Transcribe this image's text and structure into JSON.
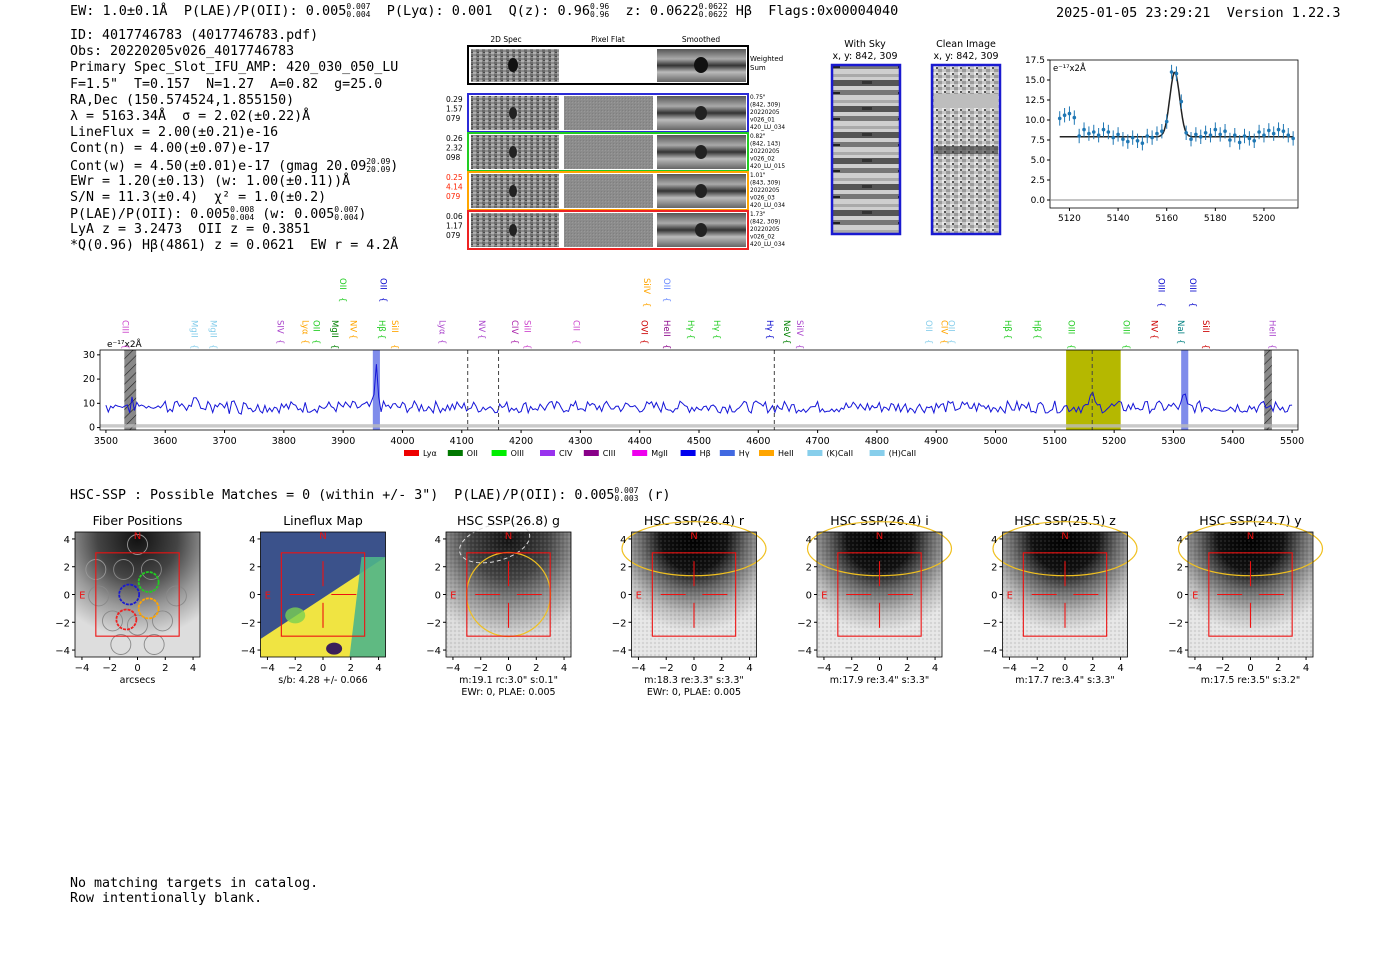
{
  "header": {
    "ew": "EW: 1.0±0.1Å",
    "plae": "P(LAE)/P(OII): 0.005",
    "plae_hi": "0.007",
    "plae_lo": "0.004",
    "plya": "P(Lyα): 0.001",
    "qz": "Q(z): 0.96",
    "qz_hi": "0.96",
    "qz_lo": "0.96",
    "z": "z: 0.0622",
    "z_hi": "0.0622",
    "z_lo": "0.0622",
    "line": "Hβ",
    "flags": "Flags:0x00004040",
    "timestamp": "2025-01-05 23:29:21",
    "version": "Version 1.22.3"
  },
  "info": {
    "id": "ID: 4017746783 (4017746783.pdf)",
    "obs": "Obs: 20220205v026_4017746783",
    "primary": "Primary Spec_Slot_IFU_AMP: 420_030_050_LU",
    "params": "F=1.5\"  T=0.157  N=1.27  A=0.82  g=25.0",
    "radec": "RA,Dec (150.574524,1.855150)",
    "lambda": "λ = 5163.34Å  σ = 2.02(±0.22)Å",
    "lineflux": "LineFlux = 2.00(±0.21)e-16",
    "contn": "Cont(n) = 4.00(±0.07)e-17",
    "contw": "Cont(w) = 4.50(±0.01)e-17 (gmag 20.09",
    "contw_hi": "20.09",
    "contw_lo": "20.09",
    "ewr": "EWr = 1.20(±0.13) (w: 1.00(±0.11))Å",
    "sn": "S/N = 11.3(±0.4)  χ² = 1.0(±0.2)",
    "plae": "P(LAE)/P(OII): 0.005",
    "plae_hi": "0.008",
    "plae_lo": "0.004",
    "plae_w": "(w: 0.005",
    "plae_w_hi": "0.007",
    "plae_w_lo": "0.004",
    "lya_z": "LyA z = 3.2473  OII z = 0.3851",
    "q_line": "*Q(0.96) Hβ(4861) z = 0.0621  EW r = 4.2Å"
  },
  "cutouts": {
    "col_headers": [
      "2D Spec",
      "Pixel Flat",
      "Smoothed"
    ],
    "weighted_label": [
      "Weighted",
      "Sum"
    ],
    "rows": [
      {
        "left": [
          "0.29",
          "1.57",
          "079"
        ],
        "left_color": "#000000",
        "border": "#2b2bd6",
        "right": [
          "0.75\"",
          "(842, 309)",
          "20220205",
          "v026_01",
          "420_LU_034"
        ]
      },
      {
        "left": [
          "0.26",
          "2.32",
          "098"
        ],
        "left_color": "#000000",
        "border": "#22cc22",
        "right": [
          "0.82\"",
          "(842, 143)",
          "20220205",
          "v026_02",
          "420_LU_015"
        ]
      },
      {
        "left": [
          "0.25",
          "4.14",
          "079"
        ],
        "left_color": "#ff2200",
        "border": "#ffa500",
        "right": [
          "1.01\"",
          "(843, 309)",
          "20220205",
          "v026_03",
          "420_LU_034"
        ]
      },
      {
        "left": [
          "0.06",
          "1.17",
          "079"
        ],
        "left_color": "#000000",
        "border": "#ee2222",
        "right": [
          "1.73\"",
          "(842, 309)",
          "20220205",
          "v026_02",
          "420_LU_034"
        ]
      }
    ]
  },
  "sky": {
    "with_sky_title": "With Sky",
    "with_sky_sub": "x, y: 842, 309",
    "clean_title": "Clean Image",
    "clean_sub": "x, y: 842, 309"
  },
  "zoom_label": "e⁻¹⁷x2Å",
  "spec_label": "e⁻¹⁷x2Å",
  "chart_data": [
    {
      "type": "line",
      "id": "zoom-spectrum",
      "xlim": [
        5112,
        5214
      ],
      "ylim": [
        -1,
        17.5
      ],
      "xticks": [
        5120,
        5140,
        5160,
        5180,
        5200
      ],
      "yticks": [
        0.0,
        2.5,
        5.0,
        7.5,
        10.0,
        12.5,
        15.0,
        17.5
      ],
      "x": [
        5116,
        5118,
        5120,
        5122,
        5124,
        5126,
        5128,
        5130,
        5132,
        5134,
        5136,
        5138,
        5140,
        5142,
        5144,
        5146,
        5148,
        5150,
        5152,
        5154,
        5156,
        5158,
        5160,
        5162,
        5164,
        5166,
        5168,
        5170,
        5172,
        5174,
        5176,
        5178,
        5180,
        5182,
        5184,
        5186,
        5188,
        5190,
        5192,
        5194,
        5196,
        5198,
        5200,
        5202,
        5204,
        5206,
        5208,
        5210,
        5212
      ],
      "y": [
        10.2,
        10.6,
        10.8,
        10.3,
        8.0,
        8.8,
        8.3,
        8.5,
        8.1,
        8.8,
        8.5,
        7.8,
        8.2,
        7.6,
        7.3,
        7.8,
        7.4,
        7.1,
        8.0,
        7.8,
        8.3,
        8.6,
        9.8,
        16.0,
        15.8,
        12.3,
        8.4,
        7.6,
        8.2,
        7.9,
        8.4,
        8.1,
        8.8,
        8.2,
        8.6,
        7.5,
        8.1,
        7.2,
        8.0,
        7.7,
        7.4,
        8.5,
        8.1,
        8.7,
        8.3,
        8.8,
        8.6,
        8.1,
        7.7
      ],
      "err": 0.9,
      "model": {
        "continuum": 7.9,
        "center": 5163.3,
        "sigma": 2.02,
        "amplitude": 8.1,
        "xrange": [
          5116,
          5212
        ]
      }
    },
    {
      "type": "line",
      "id": "full-spectrum",
      "xlim": [
        3490,
        5510
      ],
      "ylim": [
        -1,
        32
      ],
      "xticks": [
        3500,
        3600,
        3700,
        3800,
        3900,
        4000,
        4100,
        4200,
        4300,
        4400,
        4500,
        4600,
        4700,
        4800,
        4900,
        5000,
        5100,
        5200,
        5300,
        5400,
        5500
      ],
      "yticks": [
        0,
        10,
        20,
        30
      ],
      "series": [
        {
          "x_start": 3500,
          "x_end": 5500,
          "step": 4,
          "baseline": 8.5,
          "noise": 2.5
        }
      ],
      "emission": [
        {
          "x": 3956,
          "height": 16,
          "width": 2.5
        },
        {
          "x": 5163,
          "height": 8,
          "width": 2.0
        },
        {
          "x": 5318,
          "height": 6,
          "width": 2.0
        }
      ],
      "hatched": [
        [
          3531,
          3551
        ],
        [
          5453,
          5466
        ]
      ],
      "yellow_band": [
        5119,
        5211
      ],
      "blue_bands": [
        [
          3950,
          3962
        ],
        [
          5313,
          5325
        ]
      ],
      "dashed_lines": [
        4110,
        4162,
        4627,
        5163
      ],
      "lines": [
        {
          "label": "CIII",
          "x": 3523,
          "color": "#cc44cc",
          "row": 2
        },
        {
          "label": "MgII",
          "x": 3639,
          "color": "#87ceeb",
          "row": 2
        },
        {
          "label": "MgII",
          "x": 3671,
          "color": "#87ceeb",
          "row": 2
        },
        {
          "label": "SIV",
          "x": 3784,
          "color": "#aa44cc",
          "row": 2
        },
        {
          "label": "Lyα",
          "x": 3826,
          "color": "#ffa500",
          "row": 2
        },
        {
          "label": "OII",
          "x": 3845,
          "color": "#22cc22",
          "row": 2
        },
        {
          "label": "MgII",
          "x": 3876,
          "color": "#008000",
          "row": 2
        },
        {
          "label": "NV",
          "x": 3907,
          "color": "#ffa500",
          "row": 2
        },
        {
          "label": "OII",
          "x": 3890,
          "color": "#22cc22",
          "row": 1
        },
        {
          "label": "Hβ",
          "x": 3955,
          "color": "#22cc22",
          "row": 2
        },
        {
          "label": "SiII",
          "x": 3977,
          "color": "#ffa500",
          "row": 2
        },
        {
          "label": "OII",
          "x": 3958,
          "color": "#0000cc",
          "row": 1
        },
        {
          "label": "Lyα",
          "x": 4057,
          "color": "#aa44cc",
          "row": 2
        },
        {
          "label": "NV",
          "x": 4124,
          "color": "#aa44cc",
          "row": 2
        },
        {
          "label": "CIV",
          "x": 4180,
          "color": "#aa22aa",
          "row": 2
        },
        {
          "label": "SiII",
          "x": 4201,
          "color": "#cc44cc",
          "row": 2
        },
        {
          "label": "CII",
          "x": 4283,
          "color": "#cc44cc",
          "row": 2
        },
        {
          "label": "SiIV",
          "x": 4402,
          "color": "#ffa500",
          "row": 1
        },
        {
          "label": "OII",
          "x": 4436,
          "color": "#6688ff",
          "row": 1
        },
        {
          "label": "OVI",
          "x": 4398,
          "color": "#cc0000",
          "row": 2
        },
        {
          "label": "HeII",
          "x": 4436,
          "color": "#880088",
          "row": 2
        },
        {
          "label": "Hγ",
          "x": 4476,
          "color": "#22cc22",
          "row": 2
        },
        {
          "label": "Hγ",
          "x": 4520,
          "color": "#22cc22",
          "row": 2
        },
        {
          "label": "Hγ",
          "x": 4610,
          "color": "#0000cc",
          "row": 2
        },
        {
          "label": "NeV",
          "x": 4638,
          "color": "#008000",
          "row": 2
        },
        {
          "label": "SiIV",
          "x": 4660,
          "color": "#aa44cc",
          "row": 2
        },
        {
          "label": "OII",
          "x": 4878,
          "color": "#87ceeb",
          "row": 2
        },
        {
          "label": "CIV",
          "x": 4904,
          "color": "#ffa500",
          "row": 2
        },
        {
          "label": "OII",
          "x": 4916,
          "color": "#87ceeb",
          "row": 2
        },
        {
          "label": "Hβ",
          "x": 5011,
          "color": "#22cc22",
          "row": 2
        },
        {
          "label": "Hβ",
          "x": 5061,
          "color": "#22cc22",
          "row": 2
        },
        {
          "label": "OIII",
          "x": 5118,
          "color": "#22cc22",
          "row": 2
        },
        {
          "label": "OIII",
          "x": 5211,
          "color": "#22cc22",
          "row": 2
        },
        {
          "label": "NV",
          "x": 5258,
          "color": "#cc0000",
          "row": 2
        },
        {
          "label": "NaI",
          "x": 5303,
          "color": "#008080",
          "row": 2
        },
        {
          "label": "SiII",
          "x": 5345,
          "color": "#cc0000",
          "row": 2
        },
        {
          "label": "OIII",
          "x": 5270,
          "color": "#0000cc",
          "row": 1
        },
        {
          "label": "OIII",
          "x": 5323,
          "color": "#0000cc",
          "row": 1
        },
        {
          "label": "HeII",
          "x": 5457,
          "color": "#aa44cc",
          "row": 2
        }
      ],
      "legend": [
        {
          "label": "Lyα",
          "color": "#ee0000"
        },
        {
          "label": "OII",
          "color": "#007700"
        },
        {
          "label": "OIII",
          "color": "#00ee00"
        },
        {
          "label": "CIV",
          "color": "#9933ee"
        },
        {
          "label": "CIII",
          "color": "#880088"
        },
        {
          "label": "MgII",
          "color": "#ee00ee"
        },
        {
          "label": "Hβ",
          "color": "#0000ee"
        },
        {
          "label": "Hγ",
          "color": "#4169e1"
        },
        {
          "label": "HeII",
          "color": "#ffa500"
        },
        {
          "label": "(K)CaII",
          "color": "#87ceeb"
        },
        {
          "label": "(H)CaII",
          "color": "#87ceeb"
        }
      ]
    }
  ],
  "hsc": {
    "line": "HSC-SSP : Possible Matches = 0 (within +/- 3\")  P(LAE)/P(OII): 0.005",
    "hi": "0.007",
    "lo": "0.003",
    "suffix": "(r)",
    "panels": [
      {
        "title": "Fiber Positions",
        "sub": [
          "arcsecs"
        ],
        "kind": "fiber"
      },
      {
        "title": "Lineflux Map",
        "sub": [
          "s/b: 4.28 +/- 0.066"
        ],
        "kind": "lineflux"
      },
      {
        "title": "HSC SSP(26.8) g",
        "sub": [
          "m:19.1 rc:3.0\"  s:0.1\"",
          "EWr: 0, PLAE: 0.005"
        ],
        "kind": "g"
      },
      {
        "title": "HSC SSP(26.4) r",
        "sub": [
          "m:18.3  re:3.3\"  s:3.3\"",
          "EWr: 0, PLAE: 0.005"
        ],
        "kind": "r"
      },
      {
        "title": "HSC SSP(26.4) i",
        "sub": [
          "m:17.9  re:3.4\"  s:3.3\""
        ],
        "kind": "i"
      },
      {
        "title": "HSC SSP(25.5) z",
        "sub": [
          "m:17.7  re:3.4\"  s:3.3\""
        ],
        "kind": "z"
      },
      {
        "title": "HSC SSP(24.7) y",
        "sub": [
          "m:17.5  re:3.5\"  s:3.2\""
        ],
        "kind": "y"
      }
    ],
    "ticks": [
      "−4",
      "−2",
      "0",
      "2",
      "4"
    ],
    "north": "N",
    "east": "E"
  },
  "footer": {
    "line1": "No matching targets in catalog.",
    "line2": "Row intentionally blank."
  }
}
